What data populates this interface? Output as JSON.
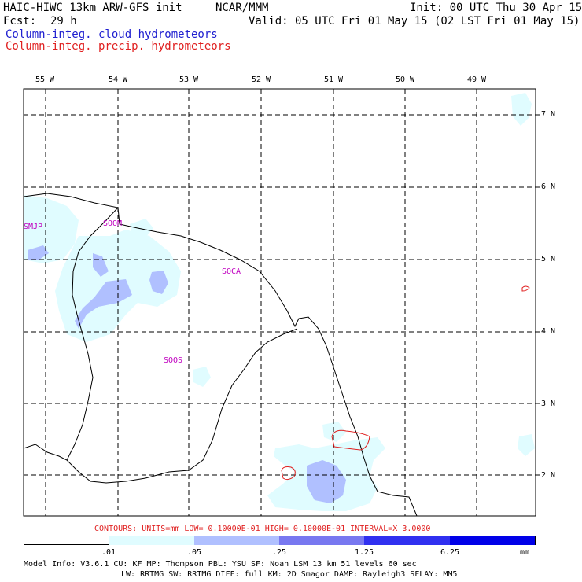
{
  "header": {
    "title_left": "HAIC-HIWC 13km ARW-GFS init",
    "title_center": "NCAR/MMM",
    "init": "Init: 00 UTC Thu 30 Apr 15",
    "fcst_label": "Fcst:",
    "fcst_value": "29 h",
    "valid": "Valid: 05 UTC Fri 01 May 15 (02 LST Fri 01 May 15)"
  },
  "fields": [
    {
      "label": "Column-integ. cloud hydrometeors",
      "color": "#2020d0"
    },
    {
      "label": "Column-integ. precip. hydrometeors",
      "color": "#e02020"
    }
  ],
  "map": {
    "lon_labels": [
      "55 W",
      "54 W",
      "53 W",
      "52 W",
      "51 W",
      "50 W",
      "49 W"
    ],
    "lat_labels": [
      "7 N",
      "6 N",
      "5 N",
      "4 N",
      "3 N",
      "2 N"
    ],
    "stations": [
      "SMJP",
      "SOOM",
      "SOCA",
      "SOOS"
    ],
    "shading_colors": [
      "#e0fcff",
      "#b0c0ff",
      "#7878f0",
      "#3030f0",
      "#0000e8"
    ],
    "contour_color": "#e02020"
  },
  "contours_note": "CONTOURS:  UNITS=mm  LOW= 0.10000E-01  HIGH= 0.10000E-01  INTERVAL=X  3.0000",
  "scale": {
    "labels": [
      ".01",
      ".05",
      ".25",
      "1.25",
      "6.25"
    ],
    "unit": "mm"
  },
  "model_info": {
    "line1": "Model Info: V3.6.1   CU: KF      MP: Thompson    PBL: YSU      SF: Noah LSM    13 km   51 levels   60 sec",
    "line2": "LW: RRTMG   SW: RRTMG  DIFF: full   KM: 2D Smagor DAMP: Rayleigh3  SFLAY: MM5"
  }
}
